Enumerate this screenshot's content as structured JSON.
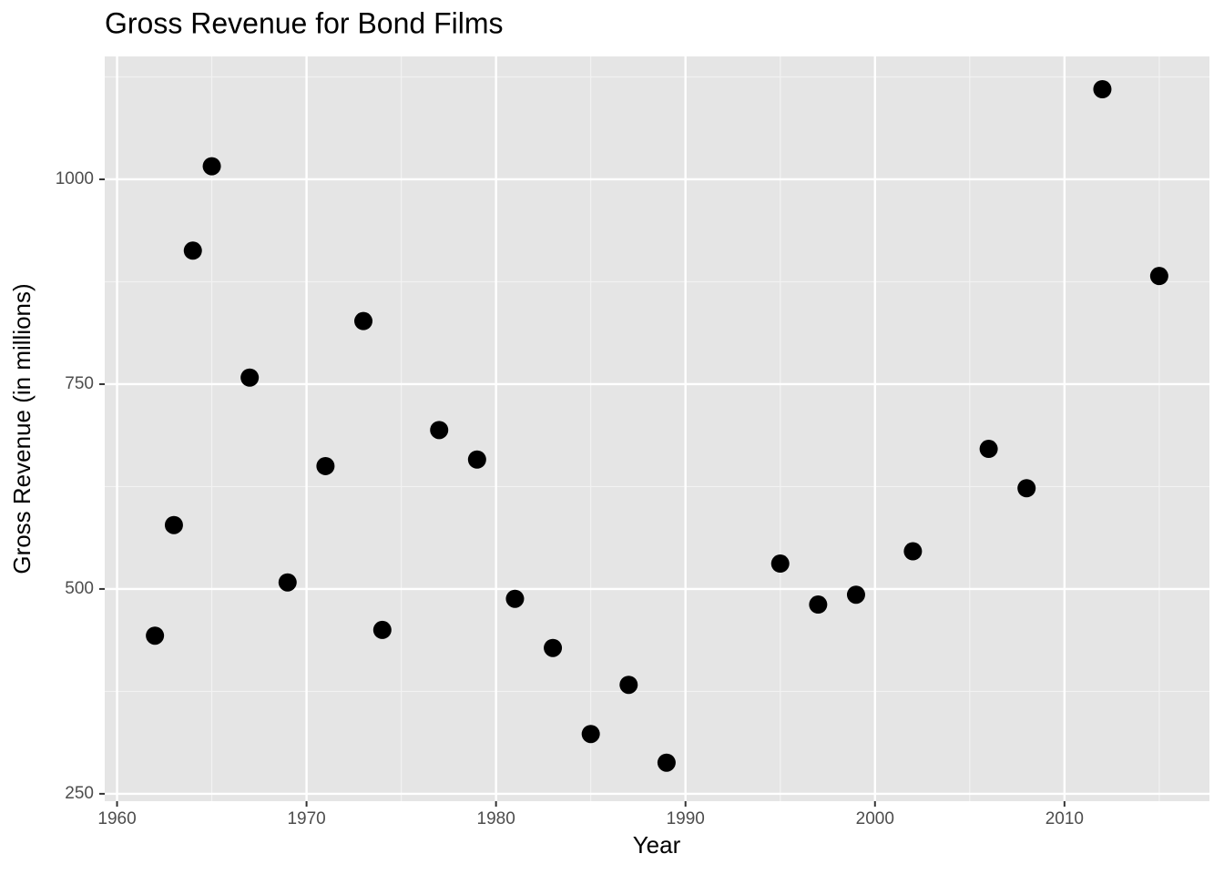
{
  "chart_data": {
    "type": "scatter",
    "title": "Gross Revenue for Bond Films",
    "x_label": "Year",
    "y_label": "Gross Revenue (in millions)",
    "x": [
      1962,
      1963,
      1964,
      1965,
      1967,
      1969,
      1971,
      1973,
      1974,
      1977,
      1979,
      1981,
      1983,
      1985,
      1987,
      1989,
      1995,
      1997,
      1999,
      2002,
      2006,
      2008,
      2012,
      2015
    ],
    "values": [
      443,
      578,
      913,
      1016,
      758,
      508,
      650,
      827,
      450,
      694,
      658,
      488,
      428,
      323,
      383,
      288,
      531,
      481,
      493,
      546,
      671,
      623,
      1110,
      882
    ],
    "color": "#000000",
    "xlim": [
      1959.35,
      2017.65
    ],
    "xticks": [
      1960,
      1970,
      1980,
      1990,
      2000,
      2010
    ],
    "x_minor_ticks": [
      1965,
      1975,
      1985,
      1995,
      2005,
      2015
    ],
    "ylim": [
      241,
      1150
    ],
    "yticks": [
      250,
      500,
      750,
      1000
    ],
    "y_minor_ticks": [
      375,
      625,
      875,
      1125
    ],
    "grid": true
  }
}
